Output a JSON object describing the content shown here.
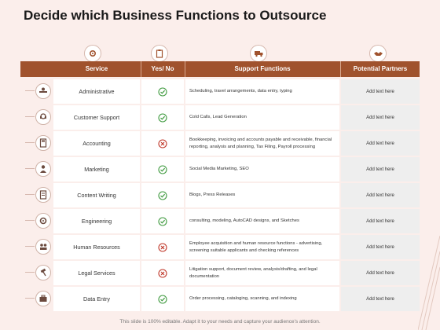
{
  "title": "Decide which Business Functions to Outsource",
  "header": {
    "service": "Service",
    "yes_no": "Yes/ No",
    "support": "Support Functions",
    "partners": "Potential Partners",
    "icons": [
      "gear-icon",
      "clipboard-icon",
      "truck-icon",
      "handshake-icon"
    ]
  },
  "rows": [
    {
      "service": "Administrative",
      "status": "yes",
      "support": "Scheduling, travel arrangements, data entry, typing",
      "partner": "Add text here",
      "icon": "desk-icon"
    },
    {
      "service": "Customer Support",
      "status": "yes",
      "support": "Cold Calls, Lead Generation",
      "partner": "Add text here",
      "icon": "headset-icon"
    },
    {
      "service": "Accounting",
      "status": "no",
      "support": "Bookkeeping, invoicing and accounts payable and receivable, financial reporting, analysis and planning, Tax Filing, Payroll processing",
      "partner": "Add text here",
      "icon": "calculator-icon"
    },
    {
      "service": "Marketing",
      "status": "yes",
      "support": "Social Media Marketing, SEO",
      "partner": "Add text here",
      "icon": "person-icon"
    },
    {
      "service": "Content Writing",
      "status": "yes",
      "support": "Blogs, Press Releases",
      "partner": "Add text here",
      "icon": "document-icon"
    },
    {
      "service": "Engineering",
      "status": "yes",
      "support": "consulting, modeling, AutoCAD designs, and Sketches",
      "partner": "Add text here",
      "icon": "gear-icon"
    },
    {
      "service": "Human Resources",
      "status": "no",
      "support": "Employee acquisition and human resource functions - advertising, screening suitable applicants and checking references",
      "partner": "Add text here",
      "icon": "people-icon"
    },
    {
      "service": "Legal Services",
      "status": "no",
      "support": "Litigation support, document review, analysis/drafting, and legal documentation",
      "partner": "Add text here",
      "icon": "gavel-icon"
    },
    {
      "service": "Data Entry",
      "status": "yes",
      "support": "Order processing, cataloging, scanning, and indexing",
      "partner": "Add text here",
      "icon": "briefcase-icon"
    }
  ],
  "footer": "This slide is 100% editable. Adapt it to your needs and capture your audience's attention.",
  "colors": {
    "header": "#a0522d",
    "check": "#3f9a3f",
    "cross": "#c0392b",
    "background": "#fbeeeb"
  }
}
